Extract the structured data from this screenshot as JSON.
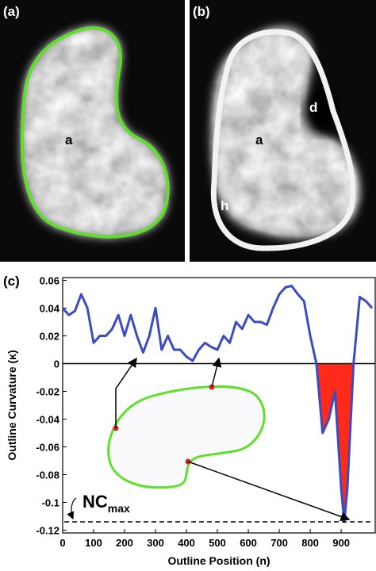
{
  "panels": {
    "a": {
      "label": "(a)",
      "region": "a"
    },
    "b": {
      "label": "(b)",
      "regions": [
        "a",
        "d",
        "h"
      ]
    }
  },
  "chart_data": {
    "type": "line",
    "panel_label": "(c)",
    "x_label": "Outline Position (n)",
    "y_label": "Outline Curvature (κ)",
    "x": [
      0,
      20,
      40,
      60,
      80,
      100,
      120,
      140,
      160,
      180,
      200,
      220,
      240,
      260,
      280,
      300,
      320,
      340,
      360,
      380,
      400,
      420,
      440,
      460,
      480,
      500,
      520,
      540,
      560,
      580,
      600,
      620,
      640,
      660,
      680,
      700,
      720,
      740,
      760,
      780,
      800,
      820,
      840,
      860,
      880,
      900,
      910,
      920,
      940,
      960,
      980,
      1000
    ],
    "values": [
      0.04,
      0.035,
      0.038,
      0.05,
      0.04,
      0.015,
      0.02,
      0.02,
      0.025,
      0.035,
      0.02,
      0.035,
      0.02,
      0.008,
      0.02,
      0.04,
      0.01,
      0.02,
      0.01,
      0.01,
      0.005,
      0.002,
      0.01,
      0.015,
      0.012,
      0.01,
      0.02,
      0.015,
      0.03,
      0.025,
      0.035,
      0.03,
      0.03,
      0.028,
      0.04,
      0.05,
      0.055,
      0.056,
      0.05,
      0.045,
      0.02,
      0.0,
      -0.05,
      -0.04,
      -0.02,
      -0.09,
      -0.114,
      -0.09,
      0.0,
      0.048,
      0.045,
      0.04
    ],
    "color": "#3b4cc0",
    "negative_fill": "#ff2a1a",
    "xlim": [
      0,
      1010
    ],
    "ylim": [
      -0.122,
      0.062
    ],
    "xticks": [
      0,
      100,
      200,
      300,
      400,
      500,
      600,
      700,
      800,
      900
    ],
    "yticks": [
      -0.12,
      -0.1,
      -0.08,
      -0.06,
      -0.04,
      -0.02,
      0,
      0.02,
      0.04,
      0.06
    ],
    "annotations": {
      "nc_max": {
        "label": "NC",
        "sub": "max",
        "value": -0.114
      }
    }
  }
}
